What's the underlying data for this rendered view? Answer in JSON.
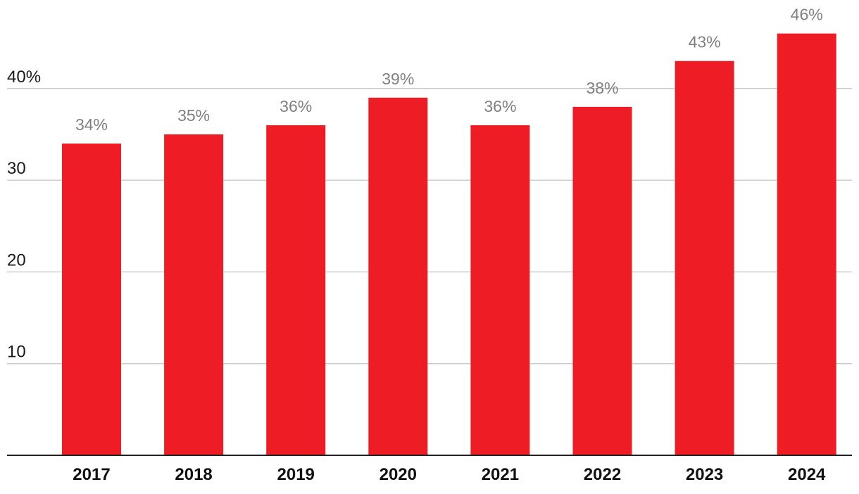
{
  "chart_data": {
    "type": "bar",
    "title": "",
    "xlabel": "",
    "ylabel": "",
    "categories": [
      "2017",
      "2018",
      "2019",
      "2020",
      "2021",
      "2022",
      "2023",
      "2024"
    ],
    "values": [
      34,
      35,
      36,
      39,
      36,
      38,
      43,
      46
    ],
    "data_labels": [
      "34%",
      "35%",
      "36%",
      "39%",
      "36%",
      "38%",
      "43%",
      "46%"
    ],
    "ylim": [
      0,
      48
    ],
    "yticks": [
      10,
      20,
      30,
      40
    ],
    "ytick_labels": [
      "10",
      "20",
      "30",
      "40%"
    ],
    "grid": true,
    "bar_color": "#ee1c25",
    "grid_color": "#cccccc",
    "axis_color": "#222222",
    "data_label_color": "#808080"
  }
}
